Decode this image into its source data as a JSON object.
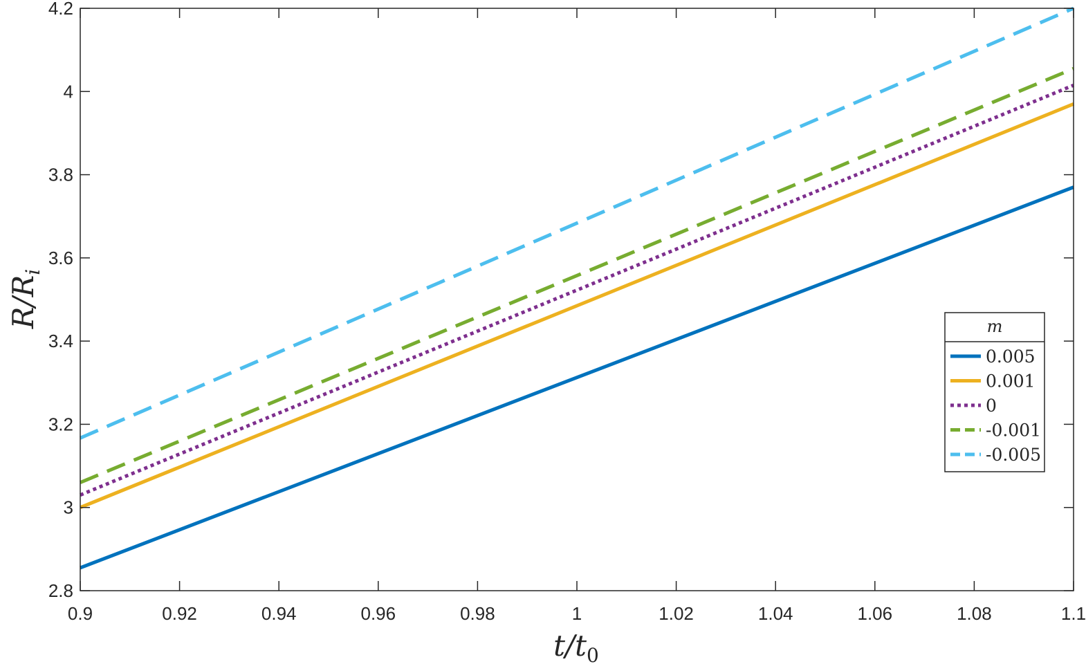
{
  "chart_data": {
    "type": "line",
    "xlabel": "t/t",
    "xlabel_sub": "0",
    "ylabel": "R/R",
    "ylabel_sub": "i",
    "xlim": [
      0.9,
      1.1
    ],
    "ylim": [
      2.8,
      4.2
    ],
    "xticks": [
      0.9,
      0.92,
      0.94,
      0.96,
      0.98,
      1,
      1.02,
      1.04,
      1.06,
      1.08,
      1.1
    ],
    "xtick_labels": [
      "0.9",
      "0.92",
      "0.94",
      "0.96",
      "0.98",
      "1",
      "1.02",
      "1.04",
      "1.06",
      "1.08",
      "1.1"
    ],
    "yticks": [
      2.8,
      3,
      3.2,
      3.4,
      3.6,
      3.8,
      4,
      4.2
    ],
    "ytick_labels": [
      "2.8",
      "3",
      "3.2",
      "3.4",
      "3.6",
      "3.8",
      "4",
      "4.2"
    ],
    "grid": false,
    "legend": {
      "title": "m",
      "placement": "right"
    },
    "x": [
      0.9,
      1.1
    ],
    "series": [
      {
        "name": "0.005",
        "values": [
          2.855,
          3.77
        ],
        "color": "#0072BD",
        "style": "solid"
      },
      {
        "name": "0.001",
        "values": [
          3.0,
          3.97
        ],
        "color": "#EDB120",
        "style": "solid"
      },
      {
        "name": "0",
        "values": [
          3.03,
          4.015
        ],
        "color": "#7E2F8E",
        "style": "dotted"
      },
      {
        "name": "-0.001",
        "values": [
          3.06,
          4.055
        ],
        "color": "#77AC30",
        "style": "dashed"
      },
      {
        "name": "-0.005",
        "values": [
          3.167,
          4.2
        ],
        "color": "#4DBEEE",
        "style": "dashed"
      }
    ]
  }
}
